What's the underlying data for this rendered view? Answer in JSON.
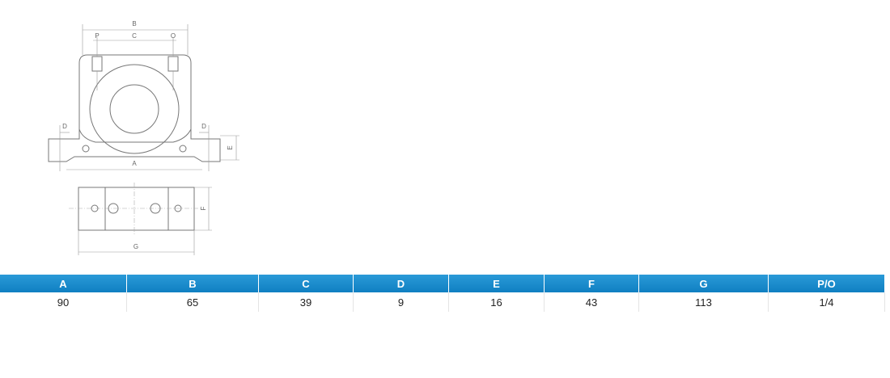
{
  "drawing": {
    "labels": [
      "B",
      "P",
      "C",
      "O",
      "D",
      "D",
      "E",
      "A",
      "F",
      "G"
    ]
  },
  "table": {
    "headers": [
      "A",
      "B",
      "C",
      "D",
      "E",
      "F",
      "G",
      "P/O"
    ],
    "rows": [
      [
        90,
        65,
        39,
        9,
        16,
        43,
        113,
        "1/4"
      ]
    ]
  }
}
